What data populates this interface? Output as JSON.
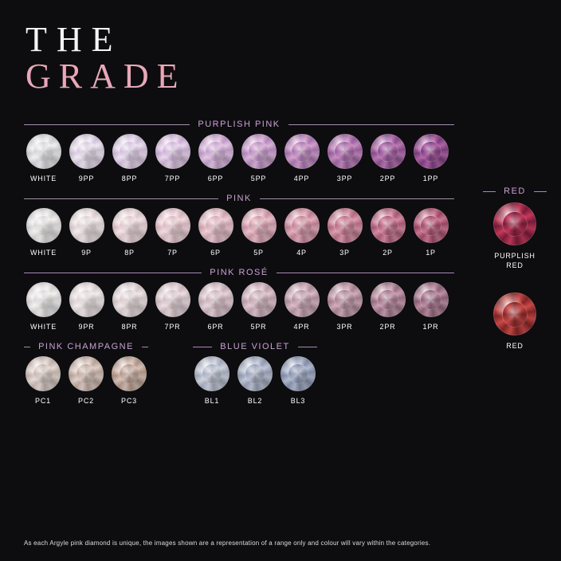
{
  "title": {
    "line1": "THE",
    "line2": "GRADE"
  },
  "accent_color": "#c9a0d4",
  "divider_color": "#a889b5",
  "background_color": "#0d0d0f",
  "sections": [
    {
      "label": "PURPLISH PINK",
      "gems": [
        {
          "label": "WHITE",
          "c": "#f2f2f4",
          "c2": "#d6d4db"
        },
        {
          "label": "9PP",
          "c": "#f1ecf3",
          "c2": "#d7c9e1"
        },
        {
          "label": "8PP",
          "c": "#efe4f1",
          "c2": "#d3bfdf"
        },
        {
          "label": "7PP",
          "c": "#ecd9ec",
          "c2": "#ceb2da"
        },
        {
          "label": "6PP",
          "c": "#e5c9e3",
          "c2": "#c49fcf"
        },
        {
          "label": "5PP",
          "c": "#ddb7d8",
          "c2": "#b88bc3"
        },
        {
          "label": "4PP",
          "c": "#d4a3cd",
          "c2": "#ab76b4"
        },
        {
          "label": "3PP",
          "c": "#c98ec0",
          "c2": "#9d63a5"
        },
        {
          "label": "2PP",
          "c": "#bf7ab3",
          "c2": "#8e5196"
        },
        {
          "label": "1PP",
          "c": "#b566a6",
          "c2": "#7e4086"
        }
      ]
    },
    {
      "label": "PINK",
      "gems": [
        {
          "label": "WHITE",
          "c": "#f3f2f2",
          "c2": "#dcd8d8"
        },
        {
          "label": "9P",
          "c": "#f4edee",
          "c2": "#e1d2d4"
        },
        {
          "label": "8P",
          "c": "#f4e6e9",
          "c2": "#e0c8cd"
        },
        {
          "label": "7P",
          "c": "#f3dde2",
          "c2": "#dcbbc3"
        },
        {
          "label": "6P",
          "c": "#f0d1d9",
          "c2": "#d6abb6"
        },
        {
          "label": "5P",
          "c": "#ecc2cd",
          "c2": "#ce98a7"
        },
        {
          "label": "4P",
          "c": "#e6b1c1",
          "c2": "#c48498"
        },
        {
          "label": "3P",
          "c": "#e09fb3",
          "c2": "#b97088"
        },
        {
          "label": "2P",
          "c": "#d88da5",
          "c2": "#ad5d78"
        },
        {
          "label": "1P",
          "c": "#d07b97",
          "c2": "#a04b68"
        }
      ]
    },
    {
      "label": "PINK ROSÉ",
      "gems": [
        {
          "label": "WHITE",
          "c": "#f4f3f3",
          "c2": "#ddd9d9"
        },
        {
          "label": "9PR",
          "c": "#f3eeef",
          "c2": "#ded4d6"
        },
        {
          "label": "8PR",
          "c": "#f1e8ea",
          "c2": "#d9cbcf"
        },
        {
          "label": "7PR",
          "c": "#eee0e4",
          "c2": "#d3c0c6"
        },
        {
          "label": "6PR",
          "c": "#e9d6dc",
          "c2": "#cab2ba"
        },
        {
          "label": "5PR",
          "c": "#e3cad3",
          "c2": "#c0a3ae"
        },
        {
          "label": "4PR",
          "c": "#dcbdc9",
          "c2": "#b593a1"
        },
        {
          "label": "3PR",
          "c": "#d4afbe",
          "c2": "#a98394"
        },
        {
          "label": "2PR",
          "c": "#cca1b3",
          "c2": "#9d7387"
        },
        {
          "label": "1PR",
          "c": "#c393a8",
          "c2": "#90647a"
        }
      ]
    }
  ],
  "bottom_sections": [
    {
      "label": "PINK CHAMPAGNE",
      "gems": [
        {
          "label": "PC1",
          "c": "#e7ddd9",
          "c2": "#c9b8b0"
        },
        {
          "label": "PC2",
          "c": "#e1d2cc",
          "c2": "#c1aa9f"
        },
        {
          "label": "PC3",
          "c": "#d9c4bb",
          "c2": "#b4988a"
        }
      ]
    },
    {
      "label": "BLUE VIOLET",
      "gems": [
        {
          "label": "BL1",
          "c": "#d2d6e0",
          "c2": "#a9b0c4"
        },
        {
          "label": "BL2",
          "c": "#c4cad9",
          "c2": "#98a1ba"
        },
        {
          "label": "BL3",
          "c": "#b5bdd1",
          "c2": "#8792b0"
        }
      ]
    }
  ],
  "side": {
    "label": "RED",
    "gems": [
      {
        "label": "PURPLISH\nRED",
        "c": "#c73a5c",
        "c2": "#7d1c3a"
      },
      {
        "label": "RED",
        "c": "#cf4a4a",
        "c2": "#862626"
      }
    ]
  },
  "footnote": "As each Argyle pink diamond is unique, the images shown are a representation of a range only and colour will vary within the categories."
}
